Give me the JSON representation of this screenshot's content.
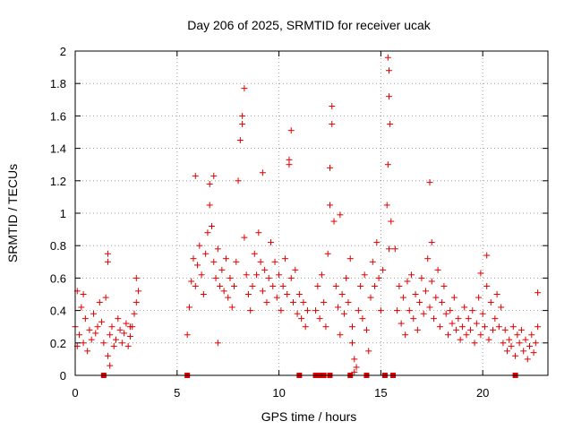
{
  "chart_data": {
    "type": "scatter",
    "title": "Day 206 of 2025, SRMTID for receiver ucak",
    "xlabel": "GPS time / hours",
    "ylabel": "SRMTID / TECUs",
    "xlim": [
      0,
      23.2
    ],
    "ylim": [
      0,
      2
    ],
    "xticks": [
      0,
      5,
      10,
      15,
      20
    ],
    "yticks": [
      0,
      0.2,
      0.4,
      0.6,
      0.8,
      1,
      1.2,
      1.4,
      1.6,
      1.8,
      2
    ],
    "grid": true,
    "marker": "+",
    "color": "#e00000",
    "series": [
      {
        "name": "SRMTID",
        "points_sampled": [
          [
            0.0,
            0.3
          ],
          [
            0.1,
            0.18
          ],
          [
            0.2,
            0.25
          ],
          [
            0.3,
            0.42
          ],
          [
            0.4,
            0.2
          ],
          [
            0.5,
            0.35
          ],
          [
            0.6,
            0.15
          ],
          [
            0.7,
            0.28
          ],
          [
            0.8,
            0.22
          ],
          [
            0.9,
            0.38
          ],
          [
            1.0,
            0.26
          ],
          [
            1.1,
            0.3
          ],
          [
            1.2,
            0.45
          ],
          [
            1.3,
            0.33
          ],
          [
            1.4,
            0.2
          ],
          [
            1.5,
            0.48
          ],
          [
            1.6,
            0.12
          ],
          [
            1.7,
            0.25
          ],
          [
            1.8,
            0.3
          ],
          [
            1.9,
            0.18
          ],
          [
            2.0,
            0.22
          ],
          [
            2.1,
            0.35
          ],
          [
            2.2,
            0.28
          ],
          [
            2.3,
            0.2
          ],
          [
            2.4,
            0.26
          ],
          [
            2.5,
            0.32
          ],
          [
            2.6,
            0.18
          ],
          [
            2.7,
            0.24
          ],
          [
            2.8,
            0.3
          ],
          [
            2.9,
            0.38
          ],
          [
            3.0,
            0.45
          ],
          [
            3.1,
            0.52
          ],
          [
            1.6,
            0.75
          ],
          [
            1.6,
            0.7
          ],
          [
            0.1,
            0.52
          ],
          [
            0.4,
            0.5
          ],
          [
            1.7,
            0.06
          ],
          [
            2.7,
            0.3
          ],
          [
            3.0,
            0.6
          ],
          [
            5.5,
            0.25
          ],
          [
            5.6,
            0.42
          ],
          [
            5.7,
            0.58
          ],
          [
            5.8,
            0.72
          ],
          [
            5.9,
            0.55
          ],
          [
            6.0,
            0.68
          ],
          [
            6.1,
            0.8
          ],
          [
            6.2,
            0.62
          ],
          [
            6.3,
            0.5
          ],
          [
            6.4,
            0.75
          ],
          [
            6.5,
            0.88
          ],
          [
            6.6,
            1.05
          ],
          [
            6.7,
            0.92
          ],
          [
            6.8,
            0.7
          ],
          [
            6.9,
            0.6
          ],
          [
            7.0,
            0.78
          ],
          [
            7.1,
            0.55
          ],
          [
            7.2,
            0.65
          ],
          [
            7.3,
            0.52
          ],
          [
            7.4,
            0.72
          ],
          [
            7.5,
            0.48
          ],
          [
            7.6,
            0.6
          ],
          [
            7.7,
            0.42
          ],
          [
            7.8,
            0.55
          ],
          [
            7.9,
            0.7
          ],
          [
            8.0,
            1.2
          ],
          [
            8.1,
            1.45
          ],
          [
            8.2,
            1.6
          ],
          [
            8.3,
            0.85
          ],
          [
            8.4,
            0.62
          ],
          [
            8.5,
            0.5
          ],
          [
            8.6,
            0.4
          ],
          [
            8.7,
            0.55
          ],
          [
            8.8,
            0.75
          ],
          [
            8.9,
            0.62
          ],
          [
            9.0,
            0.88
          ],
          [
            9.1,
            0.7
          ],
          [
            9.2,
            0.52
          ],
          [
            9.3,
            0.65
          ],
          [
            9.4,
            0.45
          ],
          [
            9.5,
            0.6
          ],
          [
            9.6,
            0.82
          ],
          [
            9.7,
            0.55
          ],
          [
            9.8,
            0.7
          ],
          [
            9.9,
            0.48
          ],
          [
            10.0,
            0.62
          ],
          [
            10.1,
            0.4
          ],
          [
            10.2,
            0.55
          ],
          [
            10.3,
            0.72
          ],
          [
            10.4,
            0.5
          ],
          [
            10.5,
            1.3
          ],
          [
            10.6,
            0.6
          ],
          [
            10.7,
            0.45
          ],
          [
            10.8,
            0.65
          ],
          [
            10.9,
            0.38
          ],
          [
            11.0,
            0.5
          ],
          [
            11.1,
            0.35
          ],
          [
            11.2,
            0.45
          ],
          [
            11.3,
            0.3
          ],
          [
            11.4,
            0.4
          ],
          [
            5.9,
            1.23
          ],
          [
            6.6,
            1.18
          ],
          [
            6.8,
            1.23
          ],
          [
            7.0,
            0.2
          ],
          [
            8.3,
            1.77
          ],
          [
            8.2,
            1.55
          ],
          [
            9.2,
            1.25
          ],
          [
            10.6,
            1.51
          ],
          [
            10.5,
            1.33
          ],
          [
            11.8,
            0.4
          ],
          [
            11.9,
            0.55
          ],
          [
            12.0,
            0.35
          ],
          [
            12.1,
            0.62
          ],
          [
            12.2,
            0.45
          ],
          [
            12.3,
            0.3
          ],
          [
            12.4,
            0.75
          ],
          [
            12.5,
            1.05
          ],
          [
            12.6,
            1.55
          ],
          [
            12.6,
            1.66
          ],
          [
            12.5,
            1.28
          ],
          [
            12.7,
            0.95
          ],
          [
            12.8,
            0.55
          ],
          [
            12.9,
            0.42
          ],
          [
            13.0,
            0.25
          ],
          [
            13.1,
            0.5
          ],
          [
            13.2,
            0.38
          ],
          [
            13.3,
            0.6
          ],
          [
            13.4,
            0.45
          ],
          [
            13.5,
            0.72
          ],
          [
            13.6,
            0.3
          ],
          [
            13.7,
            0.1
          ],
          [
            13.8,
            0.05
          ],
          [
            13.9,
            0.4
          ],
          [
            14.0,
            0.55
          ],
          [
            14.1,
            0.35
          ],
          [
            14.2,
            0.62
          ],
          [
            14.3,
            0.28
          ],
          [
            14.4,
            0.15
          ],
          [
            14.5,
            0.48
          ],
          [
            14.6,
            0.7
          ],
          [
            14.7,
            0.55
          ],
          [
            14.8,
            0.82
          ],
          [
            14.9,
            0.6
          ],
          [
            15.0,
            0.4
          ],
          [
            15.1,
            0.65
          ],
          [
            13.0,
            0.99
          ],
          [
            13.6,
            0.2
          ],
          [
            13.7,
            0.02
          ],
          [
            15.3,
            1.05
          ],
          [
            15.35,
            1.3
          ],
          [
            15.4,
            1.72
          ],
          [
            15.4,
            1.88
          ],
          [
            15.35,
            1.96
          ],
          [
            15.45,
            1.55
          ],
          [
            15.5,
            0.95
          ],
          [
            15.4,
            0.78
          ],
          [
            15.7,
            0.78
          ],
          [
            15.8,
            0.4
          ],
          [
            15.9,
            0.55
          ],
          [
            16.0,
            0.32
          ],
          [
            16.1,
            0.48
          ],
          [
            16.2,
            0.25
          ],
          [
            16.3,
            0.58
          ],
          [
            16.4,
            0.4
          ],
          [
            16.5,
            0.62
          ],
          [
            16.6,
            0.35
          ],
          [
            16.7,
            0.5
          ],
          [
            16.8,
            0.28
          ],
          [
            16.9,
            0.45
          ],
          [
            17.0,
            0.6
          ],
          [
            17.1,
            0.38
          ],
          [
            17.2,
            0.52
          ],
          [
            17.3,
            0.72
          ],
          [
            17.4,
            0.42
          ],
          [
            17.5,
            0.58
          ],
          [
            17.6,
            0.35
          ],
          [
            17.7,
            0.48
          ],
          [
            17.8,
            0.65
          ],
          [
            17.9,
            0.3
          ],
          [
            18.0,
            0.45
          ],
          [
            18.1,
            0.55
          ],
          [
            18.2,
            0.38
          ],
          [
            18.3,
            0.25
          ],
          [
            18.4,
            0.4
          ],
          [
            18.5,
            0.32
          ],
          [
            18.6,
            0.48
          ],
          [
            18.7,
            0.28
          ],
          [
            18.8,
            0.35
          ],
          [
            18.9,
            0.22
          ],
          [
            19.0,
            0.3
          ],
          [
            19.1,
            0.42
          ],
          [
            19.2,
            0.25
          ],
          [
            19.3,
            0.35
          ],
          [
            19.4,
            0.28
          ],
          [
            19.5,
            0.4
          ],
          [
            19.6,
            0.2
          ],
          [
            19.7,
            0.32
          ],
          [
            19.8,
            0.48
          ],
          [
            19.9,
            0.25
          ],
          [
            20.0,
            0.38
          ],
          [
            20.1,
            0.3
          ],
          [
            20.2,
            0.55
          ],
          [
            20.3,
            0.22
          ],
          [
            20.4,
            0.45
          ],
          [
            20.5,
            0.28
          ],
          [
            20.6,
            0.35
          ],
          [
            20.7,
            0.5
          ],
          [
            20.8,
            0.3
          ],
          [
            20.9,
            0.42
          ],
          [
            21.0,
            0.2
          ],
          [
            21.1,
            0.28
          ],
          [
            21.2,
            0.15
          ],
          [
            21.3,
            0.22
          ],
          [
            21.4,
            0.18
          ],
          [
            21.5,
            0.3
          ],
          [
            21.6,
            0.12
          ],
          [
            21.7,
            0.25
          ],
          [
            21.8,
            0.2
          ],
          [
            21.9,
            0.28
          ],
          [
            22.0,
            0.15
          ],
          [
            22.1,
            0.22
          ],
          [
            22.2,
            0.1
          ],
          [
            22.3,
            0.18
          ],
          [
            22.4,
            0.25
          ],
          [
            22.5,
            0.14
          ],
          [
            22.6,
            0.2
          ],
          [
            22.7,
            0.3
          ],
          [
            17.4,
            1.19
          ],
          [
            17.5,
            0.82
          ],
          [
            19.9,
            0.63
          ],
          [
            20.2,
            0.74
          ],
          [
            22.7,
            0.51
          ]
        ]
      }
    ],
    "baseline_markers_x": [
      1.4,
      5.5,
      11.0,
      11.8,
      12.0,
      12.2,
      12.5,
      13.5,
      14.3,
      15.2,
      15.6,
      21.6
    ]
  }
}
